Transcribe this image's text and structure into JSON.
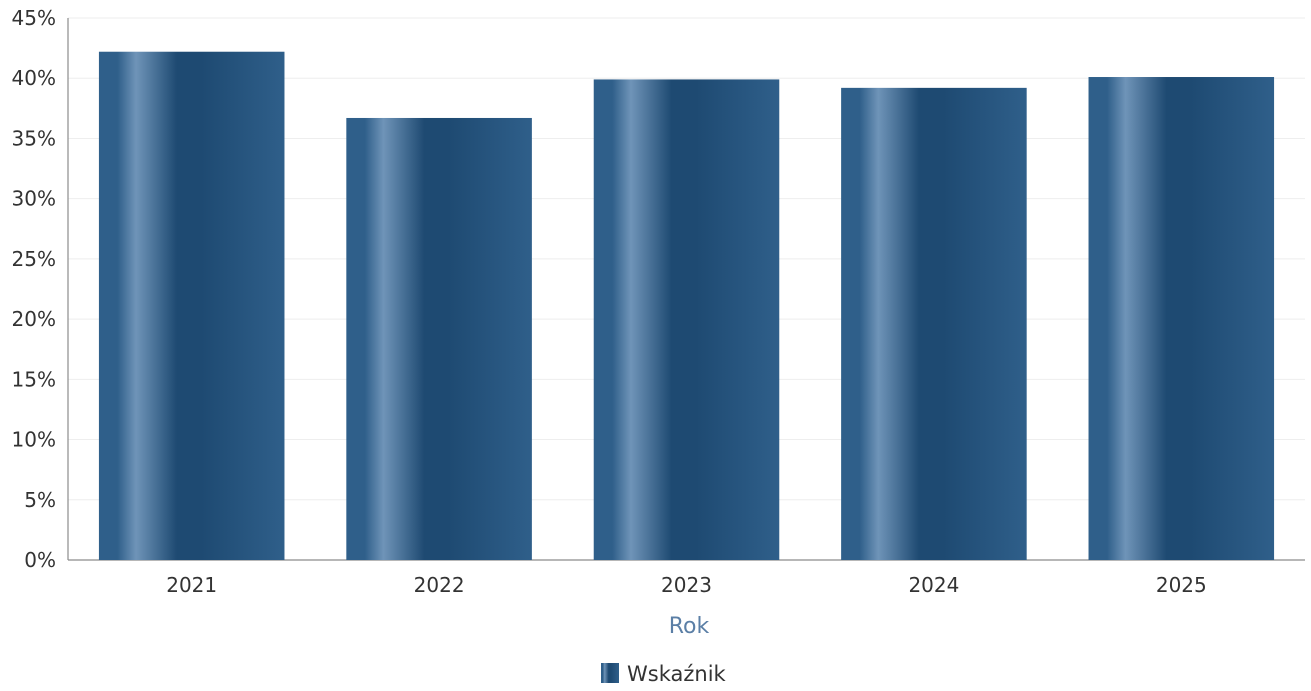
{
  "chart_data": {
    "type": "bar",
    "categories": [
      "2021",
      "2022",
      "2023",
      "2024",
      "2025"
    ],
    "series": [
      {
        "name": "Wskaźnik",
        "values": [
          42.2,
          36.7,
          39.9,
          39.2,
          40.1
        ]
      }
    ],
    "xlabel": "Rok",
    "ylabel": "",
    "ylim": [
      0,
      45
    ],
    "yticks": [
      "0%",
      "5%",
      "10%",
      "15%",
      "20%",
      "25%",
      "30%",
      "35%",
      "40%",
      "45%"
    ],
    "ytick_values": [
      0,
      5,
      10,
      15,
      20,
      25,
      30,
      35,
      40,
      45
    ],
    "grid": true,
    "legend_position": "bottom-center",
    "colors": {
      "bar_dark": "#1e4a72",
      "bar_mid": "#2f5f8a",
      "bar_light": "#6f94b8",
      "axis_title": "#5b7fa6",
      "grid": "#eeeeee"
    }
  }
}
